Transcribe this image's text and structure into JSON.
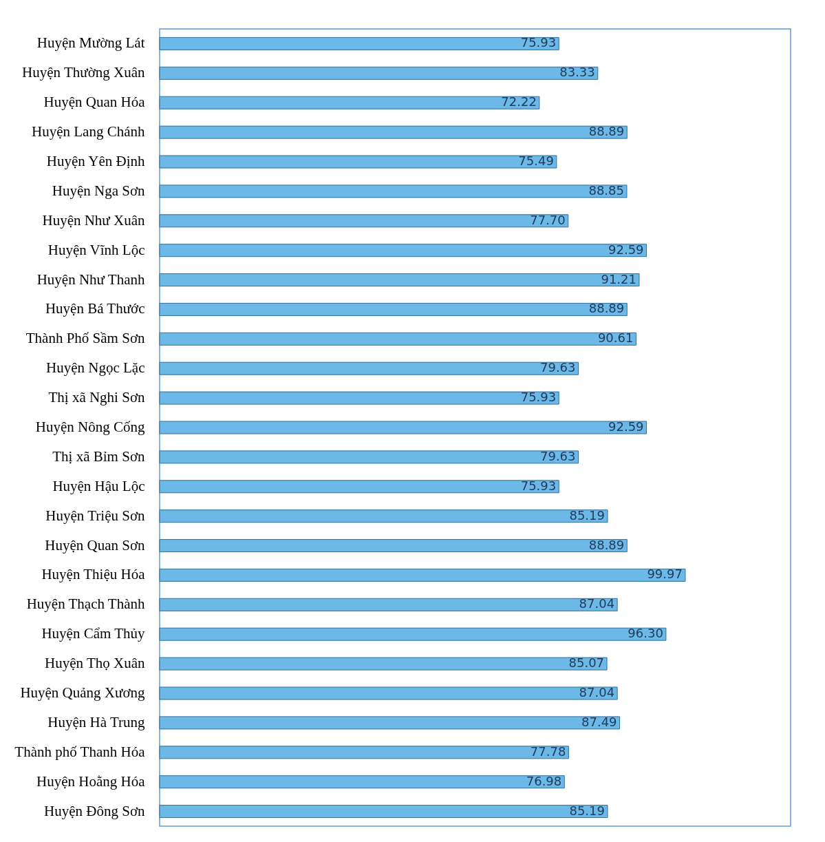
{
  "chart_data": {
    "type": "bar",
    "orientation": "horizontal",
    "color": "#6cb8e6",
    "categories": [
      "Huyện Mường Lát",
      "Huyện Thường Xuân",
      "Huyện Quan Hóa",
      "Huyện Lang Chánh",
      "Huyện Yên Định",
      "Huyện Nga Sơn",
      "Huyện Như Xuân",
      "Huyện Vĩnh Lộc",
      "Huyện Như Thanh",
      "Huyện Bá Thước",
      "Thành Phố Sầm Sơn",
      "Huyện Ngọc Lặc",
      "Thị xã Nghi Sơn",
      "Huyện Nông Cống",
      "Thị xã Bỉm Sơn",
      "Huyện Hậu Lộc",
      "Huyện Triệu Sơn",
      "Huyện Quan Sơn",
      "Huyện Thiệu Hóa",
      "Huyện Thạch Thành",
      "Huyện Cẩm Thủy",
      "Huyện Thọ Xuân",
      "Huyện Quảng Xương",
      "Huyện Hà Trung",
      "Thành phố Thanh Hóa",
      "Huyện Hoằng Hóa",
      "Huyện Đông Sơn"
    ],
    "values": [
      75.93,
      83.33,
      72.22,
      88.89,
      75.49,
      88.85,
      77.7,
      92.59,
      91.21,
      88.89,
      90.61,
      79.63,
      75.93,
      92.59,
      79.63,
      75.93,
      85.19,
      88.89,
      99.97,
      87.04,
      96.3,
      85.07,
      87.04,
      87.49,
      77.78,
      76.98,
      85.19
    ],
    "value_labels": [
      "75.93",
      "83.33",
      "72.22",
      "88.89",
      "75.49",
      "88.85",
      "77.70",
      "92.59",
      "91.21",
      "88.89",
      "90.61",
      "79.63",
      "75.93",
      "92.59",
      "79.63",
      "75.93",
      "85.19",
      "88.89",
      "99.97",
      "87.04",
      "96.30",
      "85.07",
      "87.04",
      "87.49",
      "77.78",
      "76.98",
      "85.19"
    ],
    "xlim": [
      0,
      120
    ]
  }
}
